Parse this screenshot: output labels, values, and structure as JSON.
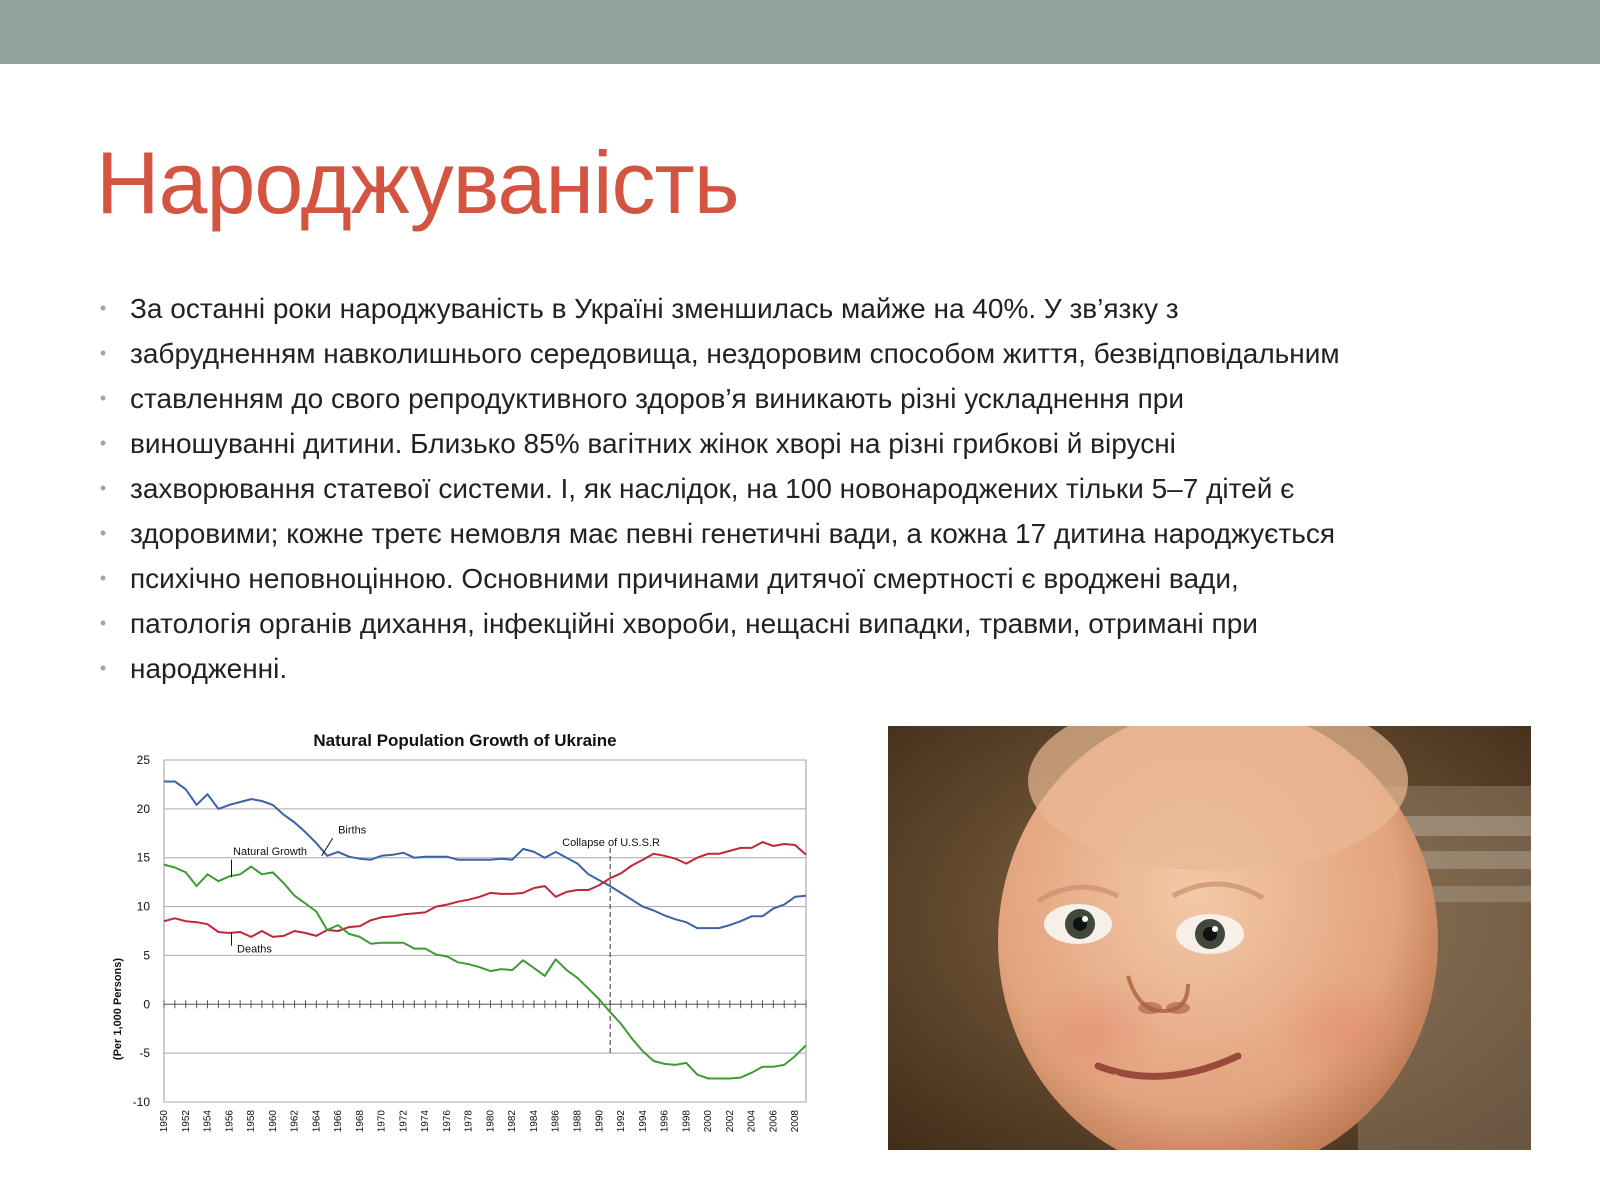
{
  "slide": {
    "title": "Народжуваність",
    "bullets": [
      "За останні роки народжуваність  в Україні зменшилась майже на 40%.  У зв’язку з",
      "забрудненням  навколишнього  середовища,  нездоровим  способом  життя,  безвідповідальним",
      "ставленням до свого репродуктивного  здоров’я     виникають  різні ускладнення  при",
      "виношуванні  дитини.  Близько 85%  вагітних  жінок хворі  на різні грибкові  й вірусні",
      "захворювання  статевої  системи.  І,  як наслідок,  на 100  новонароджених  тільки 5–7  дітей є",
      "здоровими;  кожне третє немовля  має певні  генетичні  вади, а кожна 17 дитина народжується",
      "психічно  неповноцінною.   Основними  причинами дитячої смертності  є вроджені  вади,",
      "патологія  органів  дихання,   інфекційні  хвороби,   нещасні випадки,  травми,   отримані  при",
      "народженні."
    ],
    "bullet_glyph": "•"
  },
  "colors": {
    "top_band": "#8fa39a",
    "title": "#d35541",
    "births": "#3b64a3",
    "deaths": "#c0263a",
    "natural_growth": "#3f9a35"
  },
  "photo": {
    "subject": "smiling-baby-face"
  },
  "chart_data": {
    "type": "line",
    "title": "Natural Population Growth of Ukraine",
    "ylabel": "(Per 1,000 Persons)",
    "xlabel": "",
    "ylim": [
      -10,
      25
    ],
    "xlim": [
      1950,
      2009
    ],
    "yticks": [
      25,
      20,
      15,
      10,
      5,
      0,
      -5,
      -10
    ],
    "xticks": [
      "1950",
      "1952",
      "1954",
      "1956",
      "1958",
      "1960",
      "1962",
      "1964",
      "1966",
      "1968",
      "1970",
      "1972",
      "1974",
      "1976",
      "1978",
      "1980",
      "1982",
      "1984",
      "1986",
      "1988",
      "1990",
      "1992",
      "1994",
      "1996",
      "1998",
      "2000",
      "2002",
      "2004",
      "2006",
      "2008"
    ],
    "grid": "horizontal",
    "annotations": [
      {
        "text": "Births",
        "x": 1966,
        "y": 17.5
      },
      {
        "text": "Natural Growth",
        "x": 1958,
        "y": 15.3
      },
      {
        "text": "Deaths",
        "x": 1958,
        "y": 5.3
      },
      {
        "text": "Collapse of U.S.S.R",
        "x": 1991,
        "y": 16.2
      }
    ],
    "vline": {
      "x": 1991
    },
    "x": [
      1950,
      1951,
      1952,
      1953,
      1954,
      1955,
      1956,
      1957,
      1958,
      1959,
      1960,
      1961,
      1962,
      1963,
      1964,
      1965,
      1966,
      1967,
      1968,
      1969,
      1970,
      1971,
      1972,
      1973,
      1974,
      1975,
      1976,
      1977,
      1978,
      1979,
      1980,
      1981,
      1982,
      1983,
      1984,
      1985,
      1986,
      1987,
      1988,
      1989,
      1990,
      1991,
      1992,
      1993,
      1994,
      1995,
      1996,
      1997,
      1998,
      1999,
      2000,
      2001,
      2002,
      2003,
      2004,
      2005,
      2006,
      2007,
      2008,
      2009
    ],
    "series": [
      {
        "name": "Births",
        "values": [
          22.8,
          22.8,
          22.0,
          20.4,
          21.5,
          20.0,
          20.4,
          20.7,
          21.0,
          20.8,
          20.4,
          19.4,
          18.6,
          17.6,
          16.5,
          15.2,
          15.6,
          15.1,
          14.9,
          14.8,
          15.2,
          15.3,
          15.5,
          15.0,
          15.1,
          15.1,
          15.1,
          14.8,
          14.8,
          14.8,
          14.8,
          14.9,
          14.8,
          15.9,
          15.6,
          15.0,
          15.6,
          15.0,
          14.4,
          13.3,
          12.7,
          12.1,
          11.4,
          10.7,
          10.0,
          9.6,
          9.1,
          8.7,
          8.4,
          7.8,
          7.8,
          7.8,
          8.1,
          8.5,
          9.0,
          9.0,
          9.8,
          10.2,
          11.0,
          11.1
        ]
      },
      {
        "name": "Deaths",
        "values": [
          8.5,
          8.8,
          8.5,
          8.4,
          8.2,
          7.4,
          7.3,
          7.4,
          6.9,
          7.5,
          6.9,
          7.0,
          7.5,
          7.3,
          7.0,
          7.6,
          7.5,
          7.9,
          8.0,
          8.6,
          8.9,
          9.0,
          9.2,
          9.3,
          9.4,
          10.0,
          10.2,
          10.5,
          10.7,
          11.0,
          11.4,
          11.3,
          11.3,
          11.4,
          11.9,
          12.1,
          11.0,
          11.5,
          11.7,
          11.7,
          12.2,
          12.9,
          13.4,
          14.2,
          14.8,
          15.4,
          15.2,
          14.9,
          14.4,
          15.0,
          15.4,
          15.4,
          15.7,
          16.0,
          16.0,
          16.6,
          16.2,
          16.4,
          16.3,
          15.3
        ]
      },
      {
        "name": "Natural Growth",
        "values": [
          14.3,
          14.0,
          13.5,
          12.1,
          13.3,
          12.6,
          13.1,
          13.3,
          14.1,
          13.3,
          13.5,
          12.4,
          11.1,
          10.3,
          9.5,
          7.6,
          8.1,
          7.2,
          6.9,
          6.2,
          6.3,
          6.3,
          6.3,
          5.7,
          5.7,
          5.1,
          4.9,
          4.3,
          4.1,
          3.8,
          3.4,
          3.6,
          3.5,
          4.5,
          3.7,
          2.9,
          4.6,
          3.5,
          2.7,
          1.6,
          0.5,
          -0.8,
          -2.0,
          -3.5,
          -4.8,
          -5.8,
          -6.1,
          -6.2,
          -6.0,
          -7.2,
          -7.6,
          -7.6,
          -7.6,
          -7.5,
          -7.0,
          -6.4,
          -6.4,
          -6.2,
          -5.3,
          -4.2
        ]
      }
    ]
  }
}
